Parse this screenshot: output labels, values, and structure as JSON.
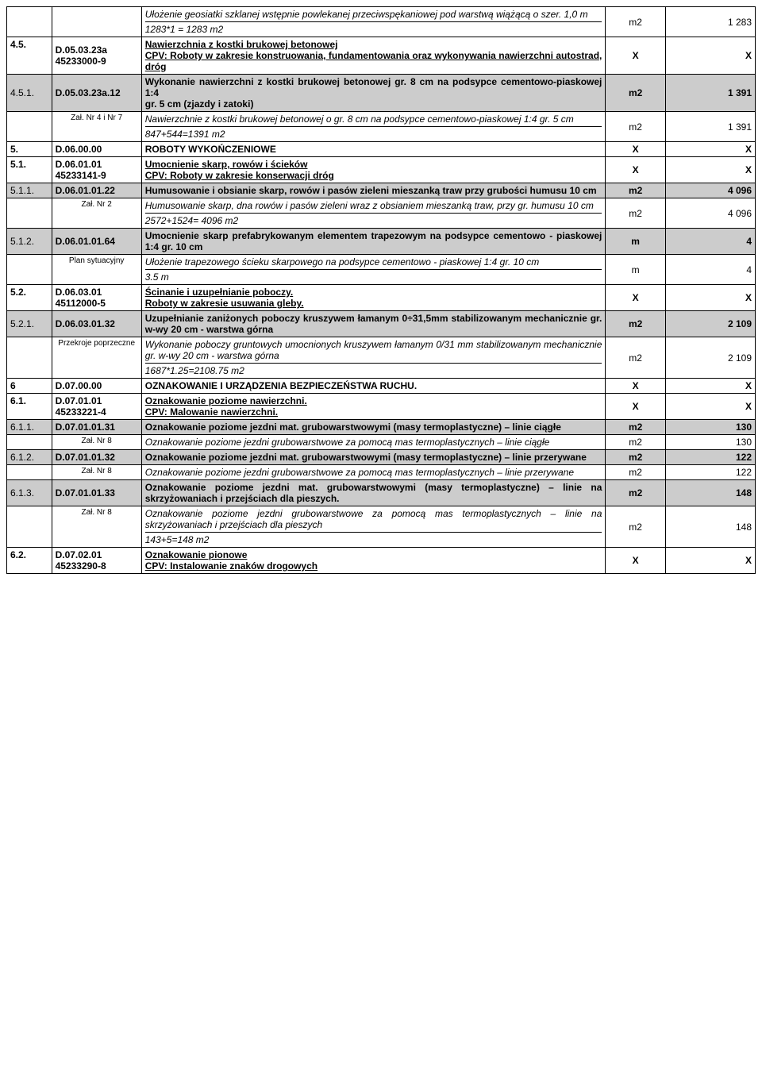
{
  "table": {
    "colWidths": [
      "6%",
      "12%",
      "62%",
      "8%",
      "12%"
    ],
    "shadeColor": "#cccccc",
    "borderColor": "#000000",
    "fontSize": 12,
    "rows": [
      {
        "type": "desc-only",
        "desc": "Ułożenie geosiatki szklanej wstępnie powlekanej przeciwspękaniowej pod warstwą wiążącą o szer. 1,0 m",
        "descItalic": true,
        "calc": "1283*1 = 1283 m2",
        "unit": "m2",
        "qty": "1 283"
      },
      {
        "type": "header",
        "idx": "4.5.",
        "code": "D.05.03.23a",
        "cpv": "45233000-9",
        "title": "Nawierzchnia z kostki brukowej betonowej",
        "cpvText": "CPV: Roboty w zakresie konstruowania, fundamentowania oraz wykonywania nawierzchni autostrad, dróg",
        "unit": "X",
        "qty": "X"
      },
      {
        "type": "item",
        "idx": "4.5.1.",
        "code": "D.05.03.23a.12",
        "shade": true,
        "desc": "Wykonanie nawierzchni z kostki brukowej betonowej gr. 8 cm na podsypce cementowo-piaskowej 1:4\ngr. 5 cm (zjazdy i zatoki)",
        "unit": "m2",
        "qty": "1 391"
      },
      {
        "type": "ref",
        "ref": "Zał. Nr 4 i Nr 7",
        "desc": "Nawierzchnie z kostki brukowej betonowej o gr. 8 cm na podsypce cementowo-piaskowej 1:4 gr. 5 cm",
        "calc": "847+544=1391 m2",
        "unit": "m2",
        "qty": "1 391"
      },
      {
        "type": "section",
        "idx": "5.",
        "code": "D.06.00.00",
        "title": "ROBOTY  WYKOŃCZENIOWE",
        "unit": "X",
        "qty": "X"
      },
      {
        "type": "header",
        "idx": "5.1.",
        "code": "D.06.01.01",
        "cpv": "45233141-9",
        "title": "Umocnienie skarp, rowów i ścieków",
        "cpvText": "CPV: Roboty w zakresie konserwacji dróg",
        "unit": "X",
        "qty": "X"
      },
      {
        "type": "item",
        "idx": "5.1.1.",
        "code": "D.06.01.01.22",
        "shade": true,
        "desc": "Humusowanie i obsianie skarp, rowów i pasów zieleni mieszanką traw przy grubości humusu 10 cm",
        "unit": "m2",
        "qty": "4 096"
      },
      {
        "type": "ref",
        "ref": "Zał. Nr 2",
        "desc": "Humusowanie skarp, dna rowów i pasów zieleni wraz z obsianiem mieszanką traw, przy gr. humusu 10 cm",
        "calc": "2572+1524= 4096 m2",
        "unit": "m2",
        "qty": "4 096"
      },
      {
        "type": "item",
        "idx": "5.1.2.",
        "code": "D.06.01.01.64",
        "shade": true,
        "desc": "Umocnienie skarp prefabrykowanym elementem trapezowym na podsypce cementowo - piaskowej 1:4 gr. 10 cm",
        "unit": "m",
        "qty": "4"
      },
      {
        "type": "ref",
        "ref": "Plan sytuacyjny",
        "desc": "Ułożenie trapezowego ścieku skarpowego na podsypce cementowo - piaskowej 1:4 gr. 10 cm",
        "calc": "3.5 m",
        "unit": "m",
        "qty": "4"
      },
      {
        "type": "header",
        "idx": "5.2.",
        "code": "D.06.03.01",
        "cpv": "45112000-5",
        "title": "Ścinanie i uzupełnianie poboczy.",
        "cpvText": "Roboty w zakresie usuwania gleby.",
        "unit": "X",
        "qty": "X"
      },
      {
        "type": "item",
        "idx": "5.2.1.",
        "code": "D.06.03.01.32",
        "shade": true,
        "desc": "Uzupełnianie zaniżonych poboczy kruszywem łamanym 0÷31,5mm stabilizowanym mechanicznie gr. w-wy 20 cm - warstwa górna",
        "unit": "m2",
        "qty": "2 109"
      },
      {
        "type": "ref",
        "ref": "Przekroje poprzeczne",
        "desc": "Wykonanie poboczy gruntowych umocnionych kruszywem łamanym 0/31 mm stabilizowanym mechanicznie gr. w-wy 20 cm - warstwa górna",
        "calc": "1687*1.25=2108.75 m2",
        "unit": "m2",
        "qty": "2 109"
      },
      {
        "type": "section",
        "idx": "6",
        "code": "D.07.00.00",
        "title": "OZNAKOWANIE  I  URZĄDZENIA BEZPIECZEŃSTWA  RUCHU.",
        "unit": "X",
        "qty": "X"
      },
      {
        "type": "header",
        "idx": "6.1.",
        "code": "D.07.01.01",
        "cpv": "45233221-4",
        "title": "Oznakowanie poziome nawierzchni.",
        "cpvText": "CPV: Malowanie nawierzchni.",
        "unit": "X",
        "qty": "X"
      },
      {
        "type": "item",
        "idx": "6.1.1.",
        "code": "D.07.01.01.31",
        "shade": true,
        "desc": "Oznakowanie poziome jezdni mat. grubowarstwowymi (masy termoplastyczne) – linie ciągłe",
        "unit": "m2",
        "qty": "130"
      },
      {
        "type": "ref",
        "ref": "Zał. Nr 8",
        "desc": "Oznakowanie poziome jezdni grubowarstwowe za pomocą mas termoplastycznych – linie ciągłe",
        "unit": "m2",
        "qty": "130"
      },
      {
        "type": "item",
        "idx": "6.1.2.",
        "code": "D.07.01.01.32",
        "shade": true,
        "desc": "Oznakowanie poziome jezdni mat. grubowarstwowymi (masy termoplastyczne) – linie przerywane",
        "unit": "m2",
        "qty": "122"
      },
      {
        "type": "ref",
        "ref": "Zał. Nr 8",
        "desc": "Oznakowanie poziome jezdni grubowarstwowe za pomocą mas termoplastycznych – linie przerywane",
        "unit": "m2",
        "qty": "122"
      },
      {
        "type": "item",
        "idx": "6.1.3.",
        "code": "D.07.01.01.33",
        "shade": true,
        "desc": "Oznakowanie poziome jezdni mat. grubowarstwowymi (masy termoplastyczne) – linie na skrzyżowaniach i przejściach dla pieszych.",
        "unit": "m2",
        "qty": "148"
      },
      {
        "type": "ref",
        "ref": "Zał. Nr 8",
        "desc": "Oznakowanie poziome jezdni grubowarstwowe za pomocą mas termoplastycznych – linie na skrzyżowaniach i przejściach dla pieszych",
        "calc": "143+5=148 m2",
        "unit": "m2",
        "qty": "148"
      },
      {
        "type": "header",
        "idx": "6.2.",
        "code": "D.07.02.01",
        "cpv": "45233290-8",
        "title": "Oznakowanie pionowe",
        "cpvText": "CPV: Instalowanie znaków drogowych",
        "unit": "X",
        "qty": "X"
      }
    ]
  }
}
